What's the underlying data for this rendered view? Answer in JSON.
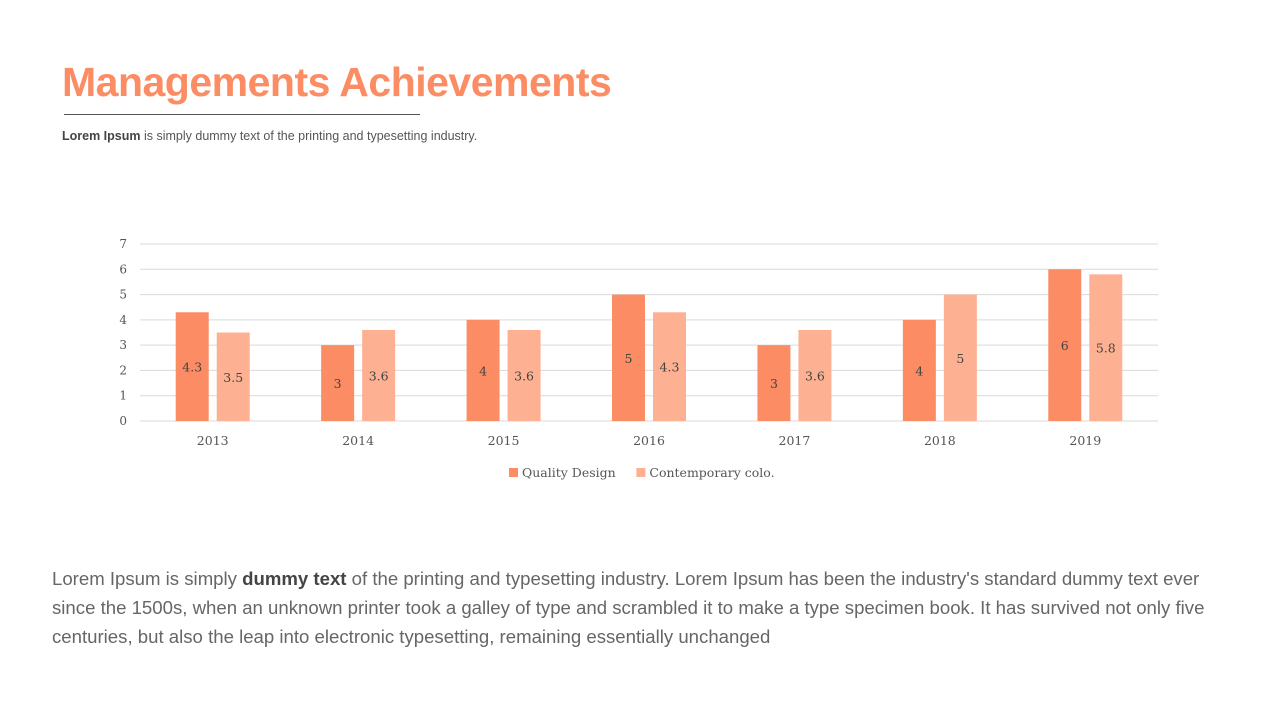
{
  "header": {
    "title": "Managements Achievements",
    "subtitle_bold": "Lorem Ipsum",
    "subtitle_rest": " is simply dummy text of the printing and typesetting industry."
  },
  "body": {
    "part1": "Lorem Ipsum is simply ",
    "bold": "dummy text",
    "part2": " of the printing and typesetting industry. Lorem Ipsum has been the industry's standard dummy text ever since the 1500s, when an unknown printer took a galley of type and scrambled it to make a type specimen book. It has survived not only five centuries, but also the leap into electronic typesetting, remaining essentially unchanged"
  },
  "colors": {
    "accent": "#fb8c63",
    "series1": "#fb8c63",
    "series2": "#fdb192",
    "grid": "#d9d9d9",
    "text": "#555555"
  },
  "chart_data": {
    "type": "bar",
    "categories": [
      "2013",
      "2014",
      "2015",
      "2016",
      "2017",
      "2018",
      "2019"
    ],
    "series": [
      {
        "name": "Quality Design",
        "values": [
          4.3,
          3,
          4,
          5,
          3,
          4,
          6
        ],
        "labels": [
          "4.3",
          "3",
          "4",
          "5",
          "3",
          "4",
          "6"
        ]
      },
      {
        "name": "Contemporary colo.",
        "values": [
          3.5,
          3.6,
          3.6,
          4.3,
          3.6,
          5,
          5.8
        ],
        "labels": [
          "3.5",
          "3.6",
          "3.6",
          "4.3",
          "3.6",
          "5",
          "5.8"
        ]
      }
    ],
    "ylim": [
      0,
      7
    ],
    "yticks": [
      "0",
      "1",
      "2",
      "3",
      "4",
      "5",
      "6",
      "7"
    ],
    "grid": true,
    "legend": "bottom"
  }
}
